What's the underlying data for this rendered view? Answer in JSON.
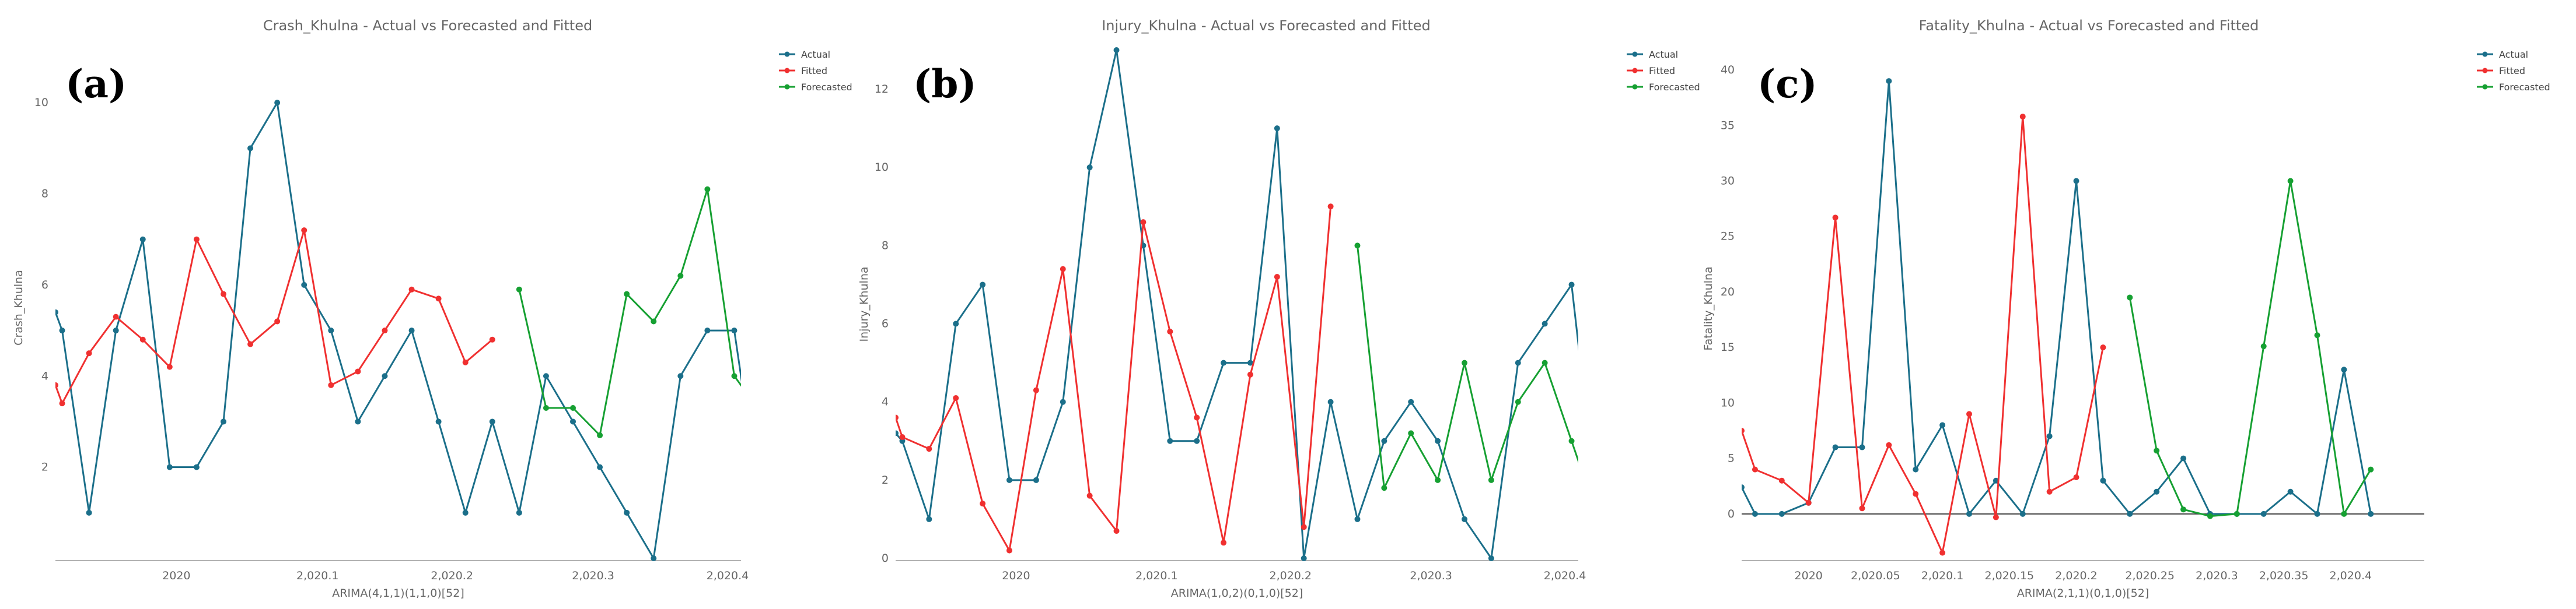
{
  "colors": {
    "actual": "#1b6f8a",
    "fitted": "#f03030",
    "forecasted": "#16a032",
    "axis": "#999999",
    "zero": "#444444"
  },
  "chart_data": [
    {
      "type": "line",
      "panel_label": "(a)",
      "title": "Crash_Khulna - Actual vs Forecasted and Fitted",
      "xlabel": "ARIMA(4,1,1)(1,1,0)[52]",
      "ylabel": "Crash_Khulna",
      "ylim": [
        0,
        11
      ],
      "xlim": [
        0,
        51
      ],
      "xticks": [
        {
          "x": 9,
          "label": "2020"
        },
        {
          "x": 19.5,
          "label": "2,020.1"
        },
        {
          "x": 29.5,
          "label": "2,020.2"
        },
        {
          "x": 40,
          "label": "2,020.3"
        },
        {
          "x": 50,
          "label": "2,020.4"
        }
      ],
      "yticks": [
        2,
        4,
        6,
        8,
        10
      ],
      "grid": false,
      "legend": "top-right",
      "series": [
        {
          "name": "Actual",
          "key": "actual",
          "points": [
            [
              0,
              5.4
            ],
            [
              0.5,
              5
            ],
            [
              2.5,
              1
            ],
            [
              4.5,
              5
            ],
            [
              6.5,
              7
            ],
            [
              8.5,
              2
            ],
            [
              10.5,
              2
            ],
            [
              12.5,
              3
            ],
            [
              14.5,
              9
            ],
            [
              16.5,
              10
            ],
            [
              18.5,
              6
            ],
            [
              20.5,
              5
            ],
            [
              22.5,
              3
            ],
            [
              24.5,
              4
            ],
            [
              26.5,
              5
            ],
            [
              28.5,
              3
            ],
            [
              30.5,
              1
            ],
            [
              32.5,
              3
            ],
            [
              34.5,
              1
            ],
            [
              36.5,
              4
            ],
            [
              38.5,
              3
            ],
            [
              40.5,
              2
            ],
            [
              42.5,
              1
            ],
            [
              44.5,
              0
            ],
            [
              46.5,
              4
            ],
            [
              48.5,
              5
            ],
            [
              50.5,
              5
            ],
            [
              52.5,
              1
            ]
          ]
        },
        {
          "name": "Fitted",
          "key": "fitted",
          "points": [
            [
              0,
              3.8
            ],
            [
              0.5,
              3.4
            ],
            [
              2.5,
              4.5
            ],
            [
              4.5,
              5.3
            ],
            [
              6.5,
              4.8
            ],
            [
              8.5,
              4.2
            ],
            [
              10.5,
              7
            ],
            [
              12.5,
              5.8
            ],
            [
              14.5,
              4.7
            ],
            [
              16.5,
              5.2
            ],
            [
              18.5,
              7.2
            ],
            [
              20.5,
              3.8
            ],
            [
              22.5,
              4.1
            ],
            [
              24.5,
              5
            ],
            [
              26.5,
              5.9
            ],
            [
              28.5,
              5.7
            ],
            [
              30.5,
              4.3
            ],
            [
              32.5,
              4.8
            ]
          ]
        },
        {
          "name": "Forecasted",
          "key": "forecasted",
          "points": [
            [
              34.5,
              5.9
            ],
            [
              36.5,
              3.3
            ],
            [
              38.5,
              3.3
            ],
            [
              40.5,
              2.7
            ],
            [
              42.5,
              5.8
            ],
            [
              44.5,
              5.2
            ],
            [
              46.5,
              6.2
            ],
            [
              48.5,
              8.1
            ],
            [
              50.5,
              4
            ],
            [
              52.5,
              3.2
            ]
          ]
        }
      ]
    },
    {
      "type": "line",
      "panel_label": "(b)",
      "title": "Injury_Khulna - Actual vs Forecasted and Fitted",
      "xlabel": "ARIMA(1,0,2)(0,1,0)[52]",
      "ylabel": "Injury_Khulna",
      "ylim": [
        0,
        13
      ],
      "xlim": [
        0,
        51
      ],
      "xticks": [
        {
          "x": 9,
          "label": "2020"
        },
        {
          "x": 19.5,
          "label": "2,020.1"
        },
        {
          "x": 29.5,
          "label": "2,020.2"
        },
        {
          "x": 40,
          "label": "2,020.3"
        },
        {
          "x": 50,
          "label": "2,020.4"
        }
      ],
      "yticks": [
        0,
        2,
        4,
        6,
        8,
        10,
        12
      ],
      "grid": false,
      "legend": "top-right",
      "series": [
        {
          "name": "Actual",
          "key": "actual",
          "points": [
            [
              0,
              3.2
            ],
            [
              0.5,
              3
            ],
            [
              2.5,
              1
            ],
            [
              4.5,
              6
            ],
            [
              6.5,
              7
            ],
            [
              8.5,
              2
            ],
            [
              10.5,
              2
            ],
            [
              12.5,
              4
            ],
            [
              14.5,
              10
            ],
            [
              16.5,
              13
            ],
            [
              18.5,
              8
            ],
            [
              20.5,
              3
            ],
            [
              22.5,
              3
            ],
            [
              24.5,
              5
            ],
            [
              26.5,
              5
            ],
            [
              28.5,
              11
            ],
            [
              30.5,
              0
            ],
            [
              32.5,
              4
            ],
            [
              34.5,
              1
            ],
            [
              36.5,
              3
            ],
            [
              38.5,
              4
            ],
            [
              40.5,
              3
            ],
            [
              42.5,
              1
            ],
            [
              44.5,
              0
            ],
            [
              46.5,
              5
            ],
            [
              48.5,
              6
            ],
            [
              50.5,
              7
            ],
            [
              52.5,
              1
            ]
          ]
        },
        {
          "name": "Fitted",
          "key": "fitted",
          "points": [
            [
              0,
              3.6
            ],
            [
              0.5,
              3.1
            ],
            [
              2.5,
              2.8
            ],
            [
              4.5,
              4.1
            ],
            [
              6.5,
              1.4
            ],
            [
              8.5,
              0.2
            ],
            [
              10.5,
              4.3
            ],
            [
              12.5,
              7.4
            ],
            [
              14.5,
              1.6
            ],
            [
              16.5,
              0.7
            ],
            [
              18.5,
              8.6
            ],
            [
              20.5,
              5.8
            ],
            [
              22.5,
              3.6
            ],
            [
              24.5,
              0.4
            ],
            [
              26.5,
              4.7
            ],
            [
              28.5,
              7.2
            ],
            [
              30.5,
              0.8
            ],
            [
              32.5,
              9
            ]
          ]
        },
        {
          "name": "Forecasted",
          "key": "forecasted",
          "points": [
            [
              34.5,
              8
            ],
            [
              36.5,
              1.8
            ],
            [
              38.5,
              3.2
            ],
            [
              40.5,
              2
            ],
            [
              42.5,
              5
            ],
            [
              44.5,
              2
            ],
            [
              46.5,
              4
            ],
            [
              48.5,
              5
            ],
            [
              50.5,
              3
            ],
            [
              52.5,
              1
            ]
          ]
        }
      ]
    },
    {
      "type": "line",
      "panel_label": "(c)",
      "title": "Fatality_Khulna - Actual vs Forecasted and Fitted",
      "xlabel": "ARIMA(2,1,1)(0,1,0)[52]",
      "ylabel": "Fatality_Khulna",
      "ylim": [
        -4,
        41
      ],
      "xlim": [
        0,
        51
      ],
      "xticks": [
        {
          "x": 5,
          "label": "2020"
        },
        {
          "x": 10,
          "label": "2,020.05"
        },
        {
          "x": 15,
          "label": "2,020.1"
        },
        {
          "x": 20,
          "label": "2,020.15"
        },
        {
          "x": 25,
          "label": "2,020.2"
        },
        {
          "x": 30.5,
          "label": "2,020.25"
        },
        {
          "x": 35.5,
          "label": "2,020.3"
        },
        {
          "x": 40.5,
          "label": "2,020.35"
        },
        {
          "x": 45.5,
          "label": "2,020.4"
        }
      ],
      "yticks": [
        0,
        5,
        10,
        15,
        20,
        25,
        30,
        35,
        40
      ],
      "grid": false,
      "legend": "top-right",
      "series": [
        {
          "name": "Actual",
          "key": "actual",
          "points": [
            [
              0,
              2.4
            ],
            [
              1,
              0
            ],
            [
              3,
              0
            ],
            [
              5,
              1
            ],
            [
              7,
              6
            ],
            [
              9,
              6
            ],
            [
              11,
              39
            ],
            [
              13,
              4
            ],
            [
              15,
              8
            ],
            [
              17,
              0
            ],
            [
              19,
              3
            ],
            [
              21,
              0
            ],
            [
              23,
              7
            ],
            [
              25,
              30
            ],
            [
              27,
              3
            ],
            [
              29,
              0
            ],
            [
              31,
              2
            ],
            [
              33,
              5
            ],
            [
              35,
              0
            ],
            [
              37,
              0
            ],
            [
              39,
              0
            ],
            [
              41,
              2
            ],
            [
              43,
              0
            ],
            [
              45,
              13
            ],
            [
              47,
              0
            ]
          ]
        },
        {
          "name": "Fitted",
          "key": "fitted",
          "points": [
            [
              0,
              7.5
            ],
            [
              1,
              4
            ],
            [
              3,
              3
            ],
            [
              5,
              1
            ],
            [
              7,
              26.7
            ],
            [
              9,
              0.5
            ],
            [
              11,
              6.2
            ],
            [
              13,
              1.8
            ],
            [
              15,
              -3.5
            ],
            [
              17,
              9
            ],
            [
              19,
              -0.3
            ],
            [
              21,
              35.8
            ],
            [
              23,
              2
            ],
            [
              25,
              3.3
            ],
            [
              27,
              15
            ]
          ]
        },
        {
          "name": "Forecasted",
          "key": "forecasted",
          "points": [
            [
              29,
              19.5
            ],
            [
              31,
              5.7
            ],
            [
              33,
              0.4
            ],
            [
              35,
              -0.2
            ],
            [
              37,
              0
            ],
            [
              39,
              15.1
            ],
            [
              41,
              30
            ],
            [
              43,
              16.1
            ],
            [
              45,
              0
            ],
            [
              47,
              4
            ]
          ]
        }
      ]
    }
  ]
}
